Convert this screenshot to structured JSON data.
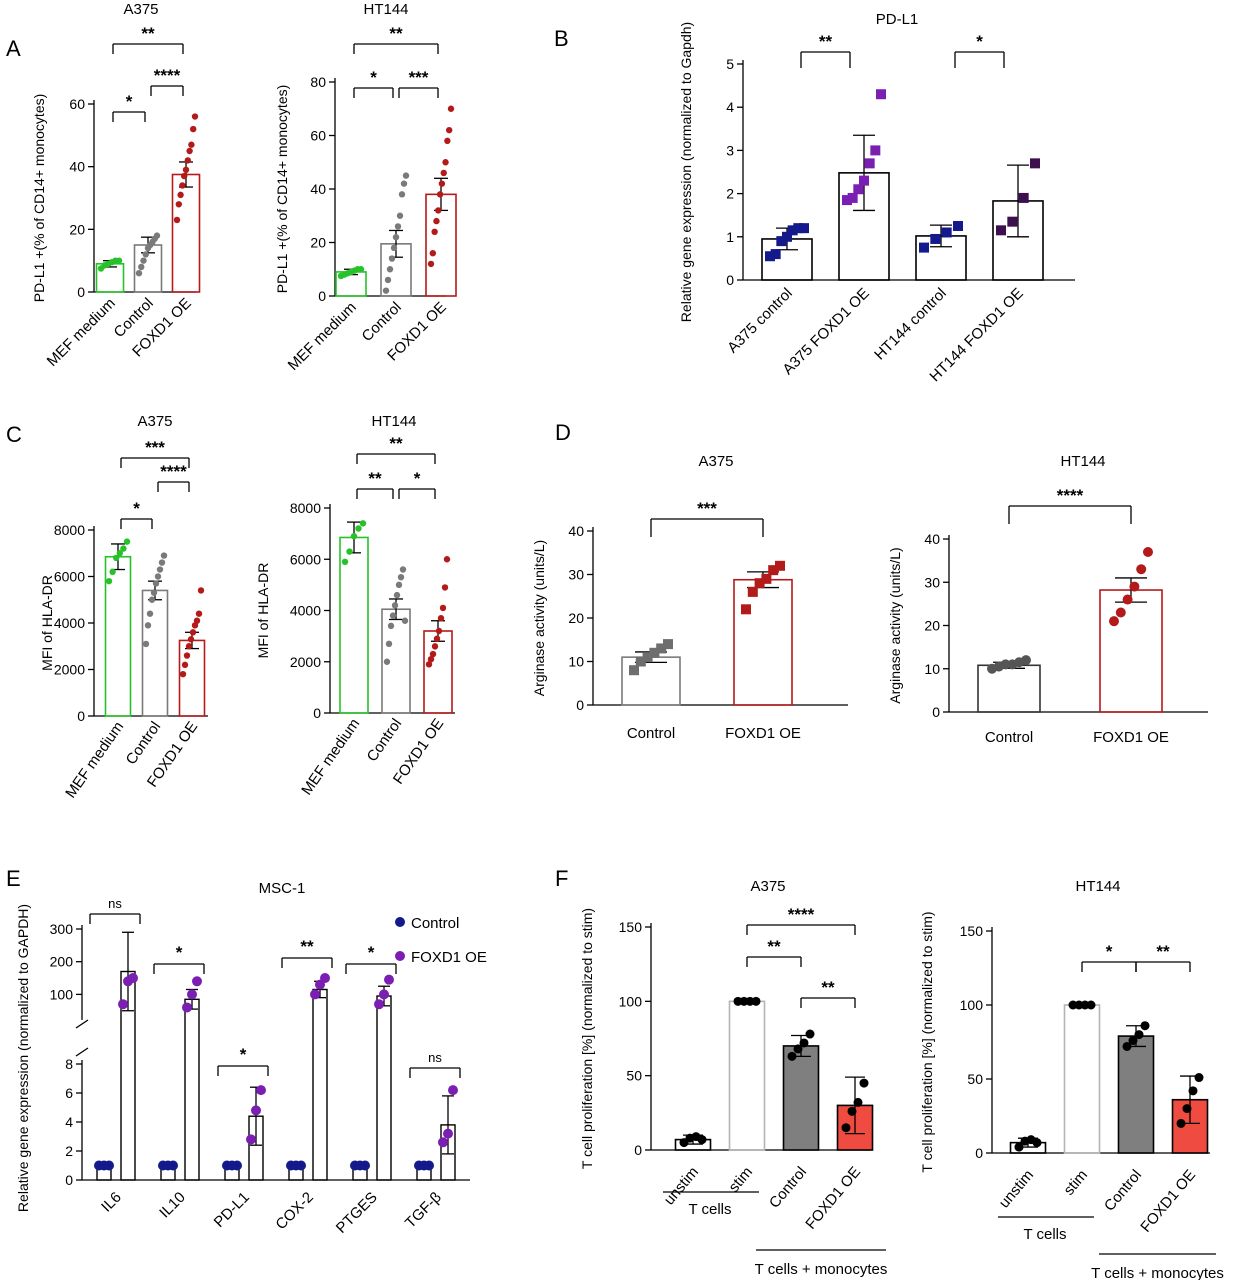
{
  "colors": {
    "green": "#27c22a",
    "grey": "#7a7a7a",
    "darkred": "#b31b1b",
    "navy": "#141a8c",
    "purple": "#7b1fb3",
    "darkpurple": "#3d0f4f",
    "red": "#f04b41",
    "darkgrey": "#7f7f7f"
  },
  "panels": {
    "A": "A",
    "B": "B",
    "C": "C",
    "D": "D",
    "E": "E",
    "F": "F"
  },
  "chart_data": [
    {
      "id": "A1",
      "panel": "A",
      "type": "bar",
      "title": "A375",
      "ylabel": "PD-L1 +(% of CD14+ monocytes)",
      "ylim": [
        0,
        60
      ],
      "yticks": [
        0,
        20,
        40,
        60
      ],
      "categories": [
        "MEF medium",
        "Control",
        "FOXD1 OE"
      ],
      "values": [
        9,
        15,
        37.5
      ],
      "errors": [
        1,
        2.5,
        4
      ],
      "points": [
        [
          7.5,
          8.5,
          9,
          9.5,
          10,
          10
        ],
        [
          6,
          8,
          10,
          12,
          14,
          15,
          16,
          17,
          18
        ],
        [
          23,
          28,
          31,
          34,
          37,
          39,
          42,
          45,
          47,
          52,
          56
        ]
      ],
      "significance": [
        {
          "from": 0,
          "to": 1,
          "label": "*"
        },
        {
          "from": 1,
          "to": 2,
          "label": "****"
        },
        {
          "from": 0,
          "to": 2,
          "label": "**"
        }
      ]
    },
    {
      "id": "A2",
      "panel": "A",
      "type": "bar",
      "title": "HT144",
      "ylabel": "PD-L1 +(% of CD14+ monocytes)",
      "ylim": [
        0,
        80
      ],
      "yticks": [
        0,
        20,
        40,
        60,
        80
      ],
      "categories": [
        "MEF medium",
        "Control",
        "FOXD1 OE"
      ],
      "values": [
        9,
        19.5,
        38
      ],
      "errors": [
        1,
        5,
        6
      ],
      "points": [
        [
          7.5,
          8,
          8.5,
          9,
          9.5,
          10,
          10
        ],
        [
          2,
          6,
          10,
          14,
          18,
          22,
          26,
          30,
          38,
          42,
          45
        ],
        [
          12,
          16,
          24,
          28,
          32,
          38,
          42,
          46,
          50,
          58,
          62,
          70
        ]
      ],
      "significance": [
        {
          "from": 0,
          "to": 1,
          "label": "*"
        },
        {
          "from": 1,
          "to": 2,
          "label": "***"
        },
        {
          "from": 0,
          "to": 2,
          "label": "**"
        }
      ]
    },
    {
      "id": "B",
      "panel": "B",
      "type": "bar",
      "title": "PD-L1",
      "ylabel": "Relative gene expression (normalized to Gapdh)",
      "ylim": [
        0,
        5
      ],
      "yticks": [
        0,
        1,
        2,
        3,
        4,
        5
      ],
      "categories": [
        "A375 control",
        "A375 FOXD1 OE",
        "HT144 control",
        "HT144 FOXD1 OE"
      ],
      "values": [
        0.95,
        2.48,
        1.02,
        1.83
      ],
      "errors": [
        0.25,
        0.87,
        0.25,
        0.83
      ],
      "points": [
        [
          0.55,
          0.6,
          0.9,
          1.0,
          1.15,
          1.2,
          1.2
        ],
        [
          1.85,
          1.9,
          2.1,
          2.3,
          2.7,
          3.0,
          4.3
        ],
        [
          0.75,
          0.95,
          1.1,
          1.25
        ],
        [
          1.15,
          1.35,
          1.9,
          2.7
        ]
      ],
      "significance": [
        {
          "from": 0,
          "to": 1,
          "label": "**"
        },
        {
          "from": 2,
          "to": 3,
          "label": "*"
        }
      ]
    },
    {
      "id": "C1",
      "panel": "C",
      "type": "bar",
      "title": "A375",
      "ylabel": "MFI of HLA-DR",
      "ylim": [
        0,
        8000
      ],
      "yticks": [
        0,
        2000,
        4000,
        6000,
        8000
      ],
      "categories": [
        "MEF medium",
        "Control",
        "FOXD1 OE"
      ],
      "values": [
        6850,
        5400,
        3250
      ],
      "errors": [
        550,
        400,
        350
      ],
      "points": [
        [
          5800,
          6200,
          6800,
          7000,
          7200,
          7500
        ],
        [
          3100,
          3900,
          4400,
          5000,
          5300,
          5700,
          6000,
          6300,
          6600,
          6900
        ],
        [
          1800,
          2200,
          2600,
          3000,
          3300,
          3600,
          3900,
          4100,
          4400,
          5400
        ]
      ],
      "significance": [
        {
          "from": 0,
          "to": 1,
          "label": "*"
        },
        {
          "from": 1,
          "to": 2,
          "label": "****"
        },
        {
          "from": 0,
          "to": 2,
          "label": "***"
        }
      ]
    },
    {
      "id": "C2",
      "panel": "C",
      "type": "bar",
      "title": "HT144",
      "ylabel": "MFI of HLA-DR",
      "ylim": [
        0,
        8000
      ],
      "yticks": [
        0,
        2000,
        4000,
        6000,
        8000
      ],
      "categories": [
        "MEF medium",
        "Control",
        "FOXD1 OE"
      ],
      "values": [
        6850,
        4050,
        3200
      ],
      "errors": [
        600,
        400,
        400
      ],
      "points": [
        [
          5900,
          6300,
          6900,
          7200,
          7400
        ],
        [
          2000,
          2700,
          3400,
          3800,
          4200,
          4600,
          5000,
          5300,
          5600,
          3600
        ],
        [
          1900,
          2100,
          2300,
          2600,
          2900,
          3200,
          3700,
          4100,
          4900,
          6000
        ]
      ],
      "significance": [
        {
          "from": 0,
          "to": 1,
          "label": "**"
        },
        {
          "from": 1,
          "to": 2,
          "label": "*"
        },
        {
          "from": 0,
          "to": 2,
          "label": "**"
        }
      ]
    },
    {
      "id": "D1",
      "panel": "D",
      "type": "bar",
      "title": "A375",
      "ylabel": "Arginase activity (units/L)",
      "ylim": [
        0,
        40
      ],
      "yticks": [
        0,
        10,
        20,
        30,
        40
      ],
      "categories": [
        "Control",
        "FOXD1 OE"
      ],
      "values": [
        11,
        28.8
      ],
      "errors": [
        1.2,
        1.8
      ],
      "points": [
        [
          8,
          10,
          11,
          12,
          13,
          14
        ],
        [
          22,
          26,
          28,
          29,
          31,
          32
        ]
      ],
      "significance": [
        {
          "from": 0,
          "to": 1,
          "label": "***"
        }
      ]
    },
    {
      "id": "D2",
      "panel": "D",
      "type": "bar",
      "title": "HT144",
      "ylabel": "Arginase activity (units/L)",
      "ylim": [
        0,
        40
      ],
      "yticks": [
        0,
        10,
        20,
        30,
        40
      ],
      "categories": [
        "Control",
        "FOXD1 OE"
      ],
      "values": [
        10.8,
        28.2
      ],
      "errors": [
        0.7,
        2.8
      ],
      "points": [
        [
          10,
          10.5,
          11,
          11,
          11.5,
          12
        ],
        [
          21,
          23,
          26,
          29,
          33,
          37
        ]
      ],
      "significance": [
        {
          "from": 0,
          "to": 1,
          "label": "****"
        }
      ]
    },
    {
      "id": "E",
      "panel": "E",
      "type": "bar",
      "title": "MSC-1",
      "ylabel": "Relative gene expression (normalized to GAPDH)",
      "yticks_lower": [
        0,
        2,
        4,
        6,
        8
      ],
      "yticks_upper": [
        100,
        200,
        300
      ],
      "categories": [
        "IL6",
        "IL10",
        "PD-L1",
        "COX-2",
        "PTGES",
        "TGF-β"
      ],
      "legend": [
        {
          "name": "Control",
          "color": "#141a8c"
        },
        {
          "name": "FOXD1 OE",
          "color": "#7b1fb3"
        }
      ],
      "series": [
        {
          "name": "Control",
          "values": [
            1,
            1,
            1,
            1,
            1,
            1
          ],
          "errors": [
            0,
            0,
            0,
            0,
            0,
            0
          ],
          "points": [
            [
              1,
              1,
              1
            ],
            [
              1,
              1,
              1
            ],
            [
              1,
              1,
              1
            ],
            [
              1,
              1,
              1
            ],
            [
              1,
              1,
              1
            ],
            [
              1,
              1,
              1
            ]
          ]
        },
        {
          "name": "FOXD1 OE",
          "values": [
            170,
            85,
            4.4,
            115,
            95,
            3.8
          ],
          "errors": [
            120,
            30,
            2,
            25,
            30,
            2
          ],
          "points": [
            [
              70,
              140,
              150
            ],
            [
              60,
              100,
              140
            ],
            [
              2.8,
              4.8,
              6.2
            ],
            [
              100,
              130,
              150
            ],
            [
              70,
              100,
              145
            ],
            [
              2.6,
              3.2,
              6.2
            ]
          ]
        }
      ],
      "significance": [
        {
          "category": 0,
          "label": "ns"
        },
        {
          "category": 1,
          "label": "*"
        },
        {
          "category": 2,
          "label": "*"
        },
        {
          "category": 3,
          "label": "**"
        },
        {
          "category": 4,
          "label": "*"
        },
        {
          "category": 5,
          "label": "ns"
        }
      ]
    },
    {
      "id": "F1",
      "panel": "F",
      "type": "bar",
      "title": "A375",
      "ylabel": "T cell proliferation [%] (normalized to stim)",
      "ylim": [
        0,
        150
      ],
      "yticks": [
        0,
        50,
        100,
        150
      ],
      "categories": [
        "unstim",
        "stim",
        "Control",
        "FOXD1 OE"
      ],
      "groups": [
        "T cells",
        "T cells + monocytes"
      ],
      "values": [
        7,
        100,
        70,
        30
      ],
      "errors": [
        3,
        0,
        7,
        19
      ],
      "points": [
        [
          5,
          8,
          9,
          7
        ],
        [
          100,
          100,
          100,
          100
        ],
        [
          63,
          68,
          72,
          78
        ],
        [
          15,
          26,
          32,
          45
        ]
      ],
      "significance": [
        {
          "from": 1,
          "to": 2,
          "label": "**"
        },
        {
          "from": 2,
          "to": 3,
          "label": "**"
        },
        {
          "from": 1,
          "to": 3,
          "label": "****"
        }
      ]
    },
    {
      "id": "F2",
      "panel": "F",
      "type": "bar",
      "title": "HT144",
      "ylabel": "T cell proliferation [%] (normalized to stim)",
      "ylim": [
        0,
        150
      ],
      "yticks": [
        0,
        50,
        100,
        150
      ],
      "categories": [
        "unstim",
        "stim",
        "Control",
        "FOXD1 OE"
      ],
      "groups": [
        "T cells",
        "T cells + monocytes"
      ],
      "values": [
        7,
        100,
        79,
        36
      ],
      "errors": [
        3,
        0,
        7,
        16
      ],
      "points": [
        [
          4,
          8,
          9,
          7
        ],
        [
          100,
          100,
          100,
          100
        ],
        [
          72,
          76,
          80,
          86
        ],
        [
          20,
          30,
          42,
          51
        ]
      ],
      "significance": [
        {
          "from": 2,
          "to": 3,
          "label": "**"
        },
        {
          "from": 1,
          "to": 2,
          "label": "*"
        }
      ]
    }
  ]
}
